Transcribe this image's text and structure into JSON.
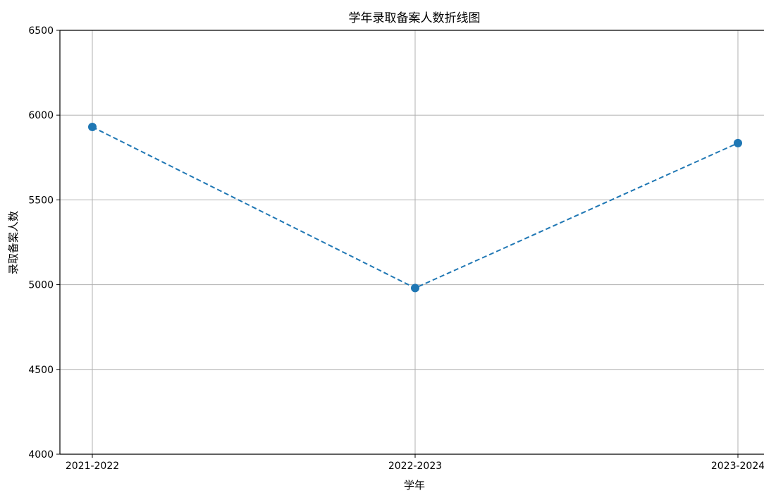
{
  "chart_data": {
    "type": "line",
    "title": "学年录取备案人数折线图",
    "xlabel": "学年",
    "ylabel": "录取备案人数",
    "categories": [
      "2021-2022",
      "2022-2023",
      "2023-2024"
    ],
    "series": [
      {
        "values": [
          5930,
          4980,
          5835
        ],
        "color": "#1f77b4",
        "line_style": "dashed",
        "marker": "circle"
      }
    ],
    "ylim": [
      4000,
      6500
    ],
    "yticks": [
      4000,
      4500,
      5000,
      5500,
      6000,
      6500
    ],
    "grid": true
  }
}
